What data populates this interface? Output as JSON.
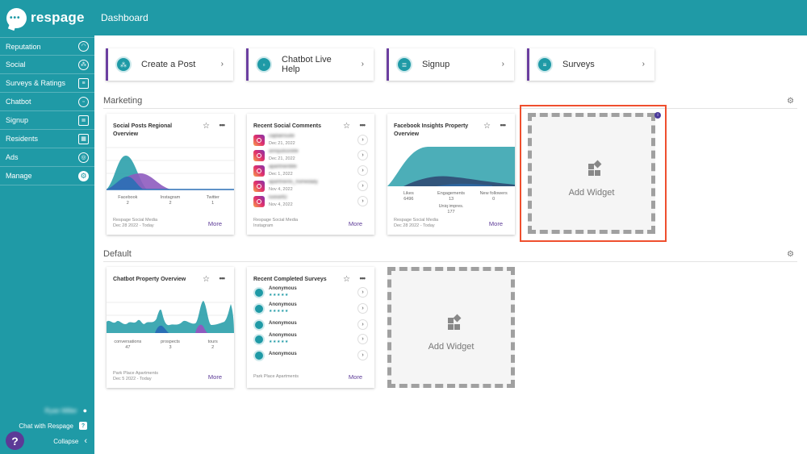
{
  "app": {
    "logo_text": "respage",
    "header_title": "Dashboard"
  },
  "sidebar": {
    "items": [
      {
        "label": "Reputation",
        "icon": "gauge-icon"
      },
      {
        "label": "Social",
        "icon": "people-icon"
      },
      {
        "label": "Surveys & Ratings",
        "icon": "clipboard-icon"
      },
      {
        "label": "Chatbot",
        "icon": "robot-icon"
      },
      {
        "label": "Signup",
        "icon": "form-icon"
      },
      {
        "label": "Residents",
        "icon": "building-icon"
      },
      {
        "label": "Ads",
        "icon": "target-icon"
      },
      {
        "label": "Manage",
        "icon": "gear-icon"
      }
    ],
    "user_name": "Ryan Miller",
    "chat_label": "Chat with Respage",
    "collapse_label": "Collapse",
    "help_symbol": "?"
  },
  "quick_actions": [
    {
      "label": "Create a Post"
    },
    {
      "label": "Chatbot Live Help"
    },
    {
      "label": "Signup"
    },
    {
      "label": "Surveys"
    }
  ],
  "sections": {
    "marketing": "Marketing",
    "default": "Default"
  },
  "widgets": {
    "social_posts": {
      "title": "Social Posts Regional Overview",
      "stats": [
        {
          "label": "Facebook",
          "value": "2"
        },
        {
          "label": "Instagram",
          "value": "2"
        },
        {
          "label": "Twitter",
          "value": "1"
        }
      ],
      "footer1": "Respage Social Media",
      "footer2": "Dec 28 2022 - Today",
      "more": "More"
    },
    "recent_comments": {
      "title": "Recent Social Comments",
      "rows": [
        {
          "name": "captainsuite",
          "date": "Dec 21, 2022"
        },
        {
          "name": "annijudsonlife",
          "date": "Dec 21, 2022"
        },
        {
          "name": "apartmentlife",
          "date": "Dec 1, 2022"
        },
        {
          "name": "apartments_homedaily",
          "date": "Nov 4, 2022"
        },
        {
          "name": "luxeartt2",
          "date": "Nov 4, 2022"
        }
      ],
      "footer1": "Respage Social Media",
      "footer2": "Instagram",
      "more": "More"
    },
    "facebook_insights": {
      "title": "Facebook Insights Property Overview",
      "stats_row1": [
        {
          "label": "Likes",
          "value": "6496"
        },
        {
          "label": "Engagements",
          "value": "13"
        },
        {
          "label": "New followers",
          "value": "0"
        }
      ],
      "stats_row2": [
        {
          "label": "Uniq impres.",
          "value": "177"
        }
      ],
      "footer1": "Respage Social Media",
      "footer2": "Dec 28 2022 - Today",
      "more": "More"
    },
    "chatbot_property": {
      "title": "Chatbot Property Overview",
      "stats": [
        {
          "label": "conversations",
          "value": "47"
        },
        {
          "label": "prospects",
          "value": "3"
        },
        {
          "label": "tours",
          "value": "2"
        }
      ],
      "footer1": "Park Place Apartments",
      "footer2": "Dec 5 2022 - Today",
      "more": "More"
    },
    "recent_surveys": {
      "title": "Recent Completed Surveys",
      "rows": [
        {
          "name": "Anonymous",
          "stars": "★★★★★"
        },
        {
          "name": "Anonymous",
          "stars": "★★★★★"
        },
        {
          "name": "Anonymous",
          "stars": ""
        },
        {
          "name": "Anonymous",
          "stars": "★★★★★"
        },
        {
          "name": "Anonymous",
          "stars": ""
        }
      ],
      "footer1": "Park Place Apartments",
      "more": "More"
    },
    "add_widget_marketing": {
      "label": "Add Widget"
    },
    "add_widget_default": {
      "label": "Add Widget"
    }
  },
  "icons": {
    "star": "☆",
    "dots": "•••",
    "chevron": "›",
    "chevron_left": "‹",
    "gear": "⚙",
    "info": "i"
  },
  "colors": {
    "teal": "#1f9aa6",
    "purple": "#5c3a97",
    "highlight": "#ef4f2e",
    "chart_purple": "#8e5bbf",
    "chart_blue": "#2a6fb5",
    "chart_dark": "#2c3e6b"
  }
}
